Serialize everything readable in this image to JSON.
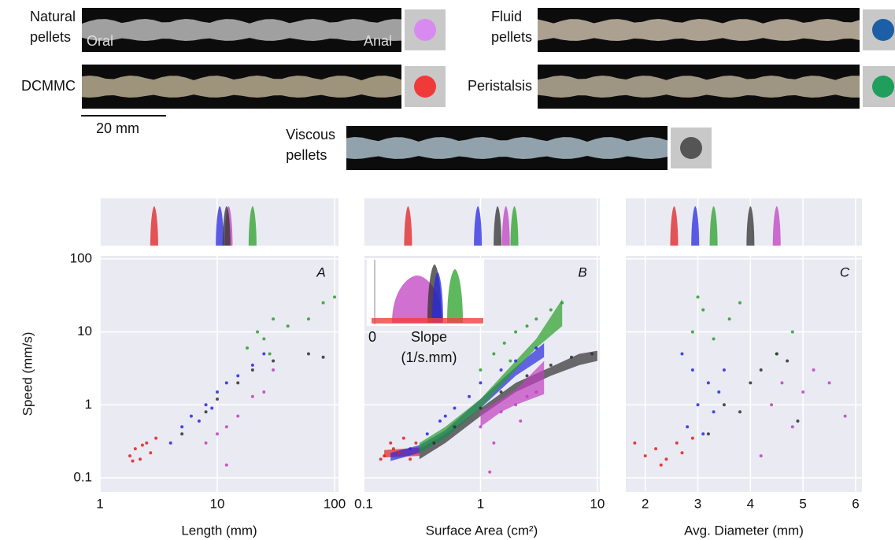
{
  "legend": [
    {
      "label": "Natural\npellets",
      "color": "#d98af0",
      "annotations": [
        "Oral",
        "Anal"
      ]
    },
    {
      "label": "DCMMC",
      "color": "#f03a3a"
    },
    {
      "label": "Fluid\npellets",
      "color": "#1d5fa6"
    },
    {
      "label": "Peristalsis",
      "color": "#1f9e5c"
    },
    {
      "label": "Viscous\npellets",
      "color": "#555555"
    }
  ],
  "scale_bar": "20 mm",
  "inset": {
    "zero": "0",
    "label": "Slope\n(1/s.mm)"
  },
  "chart_data": [
    {
      "type": "scatter",
      "title": "A",
      "xlabel": "Length (mm)",
      "ylabel": "Speed (mm/s)",
      "log_x": true,
      "log_y": true,
      "xlim": [
        1,
        108
      ],
      "xticks": [
        1,
        10,
        100
      ],
      "ylim": [
        0.064,
        110
      ],
      "yticks": [
        0.1,
        1,
        10,
        100
      ],
      "grid": true,
      "series": [
        {
          "color": "#c040c0",
          "peak": 12.5,
          "x": [
            8,
            10,
            12,
            15,
            20,
            25,
            12,
            30
          ],
          "values": [
            0.3,
            0.4,
            0.5,
            0.7,
            1.3,
            1.5,
            0.15,
            3
          ]
        },
        {
          "color": "#e02020",
          "peak": 2.9,
          "x": [
            1.8,
            2,
            2.2,
            2.5,
            2.7,
            3,
            2.3,
            1.9
          ],
          "values": [
            0.2,
            0.25,
            0.18,
            0.3,
            0.22,
            0.35,
            0.28,
            0.17
          ]
        },
        {
          "color": "#2828e0",
          "peak": 10.5,
          "x": [
            4,
            5,
            6,
            8,
            10,
            12,
            15,
            20,
            25,
            7,
            9
          ],
          "values": [
            0.3,
            0.5,
            0.7,
            1,
            1.5,
            2,
            2.5,
            3.5,
            5,
            0.6,
            0.9
          ]
        },
        {
          "color": "#28a028",
          "peak": 20,
          "x": [
            18,
            22,
            25,
            30,
            40,
            60,
            80,
            100,
            28
          ],
          "values": [
            6,
            10,
            8,
            15,
            12,
            15,
            25,
            30,
            5
          ]
        },
        {
          "color": "#303030",
          "peak": 12,
          "x": [
            5,
            8,
            10,
            15,
            20,
            30,
            60,
            80
          ],
          "values": [
            0.4,
            0.8,
            1.2,
            2,
            3,
            4,
            5,
            4.5
          ]
        }
      ]
    },
    {
      "type": "scatter",
      "title": "B",
      "xlabel": "Surface Area (cm²)",
      "log_x": true,
      "log_y": true,
      "xlim": [
        0.1,
        10.5
      ],
      "xticks": [
        0.1,
        1,
        10
      ],
      "ylim": [
        0.064,
        110
      ],
      "yticks": [
        0.1,
        1,
        10,
        100
      ],
      "grid": true,
      "series": [
        {
          "color": "#c040c0",
          "peak": 1.65,
          "x": [
            1,
            1.3,
            1.5,
            2,
            2.5,
            3,
            1.2,
            2.2
          ],
          "values": [
            0.5,
            0.3,
            0.8,
            1,
            1.3,
            1.5,
            0.12,
            0.6
          ]
        },
        {
          "color": "#e02020",
          "peak": 0.24,
          "x": [
            0.15,
            0.17,
            0.2,
            0.22,
            0.25,
            0.18,
            0.28,
            0.14
          ],
          "values": [
            0.2,
            0.3,
            0.22,
            0.35,
            0.18,
            0.25,
            0.3,
            0.18
          ]
        },
        {
          "color": "#2828e0",
          "peak": 0.95,
          "x": [
            0.25,
            0.35,
            0.45,
            0.6,
            0.8,
            1,
            1.5,
            2,
            3,
            0.5
          ],
          "values": [
            0.25,
            0.4,
            0.6,
            0.9,
            1.3,
            2,
            3,
            4,
            6,
            0.7
          ]
        },
        {
          "color": "#28a028",
          "peak": 1.95,
          "x": [
            1,
            1.3,
            1.6,
            2,
            2.5,
            3,
            4,
            5,
            1.8
          ],
          "values": [
            3,
            5,
            7,
            10,
            12,
            15,
            20,
            25,
            4
          ]
        },
        {
          "color": "#303030",
          "peak": 1.4,
          "x": [
            0.4,
            0.6,
            1,
            1.5,
            2.5,
            4,
            6,
            9
          ],
          "values": [
            0.3,
            0.5,
            0.9,
            1.5,
            2.5,
            3.5,
            4.5,
            5
          ]
        }
      ],
      "fits": [
        {
          "color": "#e02020",
          "x": [
            0.15,
            0.3
          ],
          "lo": [
            0.19,
            0.2
          ],
          "hi": [
            0.24,
            0.26
          ]
        },
        {
          "color": "#303030",
          "x": [
            0.3,
            0.5,
            1,
            2,
            4,
            7,
            10
          ],
          "lo": [
            0.18,
            0.3,
            0.7,
            1.5,
            2.5,
            3.5,
            4
          ],
          "hi": [
            0.25,
            0.4,
            0.9,
            2,
            3.3,
            5,
            5.5
          ]
        },
        {
          "color": "#2828e0",
          "x": [
            0.17,
            0.3,
            0.5,
            1,
            2,
            3.5
          ],
          "lo": [
            0.17,
            0.22,
            0.35,
            0.9,
            2.5,
            4.5
          ],
          "hi": [
            0.22,
            0.28,
            0.45,
            1.2,
            3.3,
            7
          ]
        },
        {
          "color": "#28a028",
          "x": [
            0.3,
            0.5,
            1,
            2,
            3,
            5
          ],
          "lo": [
            0.22,
            0.35,
            0.9,
            3,
            6,
            12
          ],
          "hi": [
            0.3,
            0.5,
            1.2,
            4,
            8,
            28
          ]
        },
        {
          "color": "#c040c0",
          "x": [
            1,
            1.5,
            2,
            3.5
          ],
          "lo": [
            0.5,
            0.8,
            1,
            1.4
          ],
          "hi": [
            0.8,
            1.2,
            1.6,
            4
          ]
        }
      ]
    },
    {
      "type": "scatter",
      "title": "C",
      "xlabel": "Avg. Diameter (mm)",
      "log_x": false,
      "log_y": true,
      "xlim": [
        1.63,
        6.12
      ],
      "xticks": [
        2,
        3,
        4,
        5,
        6
      ],
      "ylim": [
        0.064,
        110
      ],
      "yticks": [
        0.1,
        1,
        10,
        100
      ],
      "grid": true,
      "series": [
        {
          "color": "#c040c0",
          "peak": 4.5,
          "x": [
            4.4,
            4.6,
            4.8,
            5,
            5.2,
            5.5,
            5.8,
            4.2
          ],
          "values": [
            1,
            2,
            0.5,
            1.5,
            3,
            2,
            0.7,
            0.2
          ]
        },
        {
          "color": "#e02020",
          "peak": 2.55,
          "x": [
            1.8,
            2,
            2.2,
            2.4,
            2.6,
            2.7,
            2.9,
            2.3
          ],
          "values": [
            0.3,
            0.2,
            0.25,
            0.18,
            0.3,
            0.22,
            0.35,
            0.15
          ]
        },
        {
          "color": "#2828e0",
          "peak": 2.95,
          "x": [
            2.8,
            3,
            3.2,
            2.9,
            3.4,
            3.1,
            3.5,
            2.7,
            3.3
          ],
          "values": [
            0.5,
            1,
            2,
            3,
            1.5,
            0.4,
            3,
            5,
            0.8
          ]
        },
        {
          "color": "#28a028",
          "peak": 3.3,
          "x": [
            2.9,
            3.1,
            3.3,
            3.6,
            3.8,
            4.5,
            4.8,
            3
          ],
          "values": [
            10,
            20,
            8,
            15,
            25,
            5,
            10,
            30
          ]
        },
        {
          "color": "#303030",
          "peak": 4,
          "x": [
            3.5,
            3.8,
            4,
            4.2,
            4.5,
            4.7,
            4.9,
            3.2
          ],
          "values": [
            1,
            0.8,
            2,
            3,
            5,
            4,
            0.6,
            0.4
          ]
        }
      ]
    }
  ]
}
